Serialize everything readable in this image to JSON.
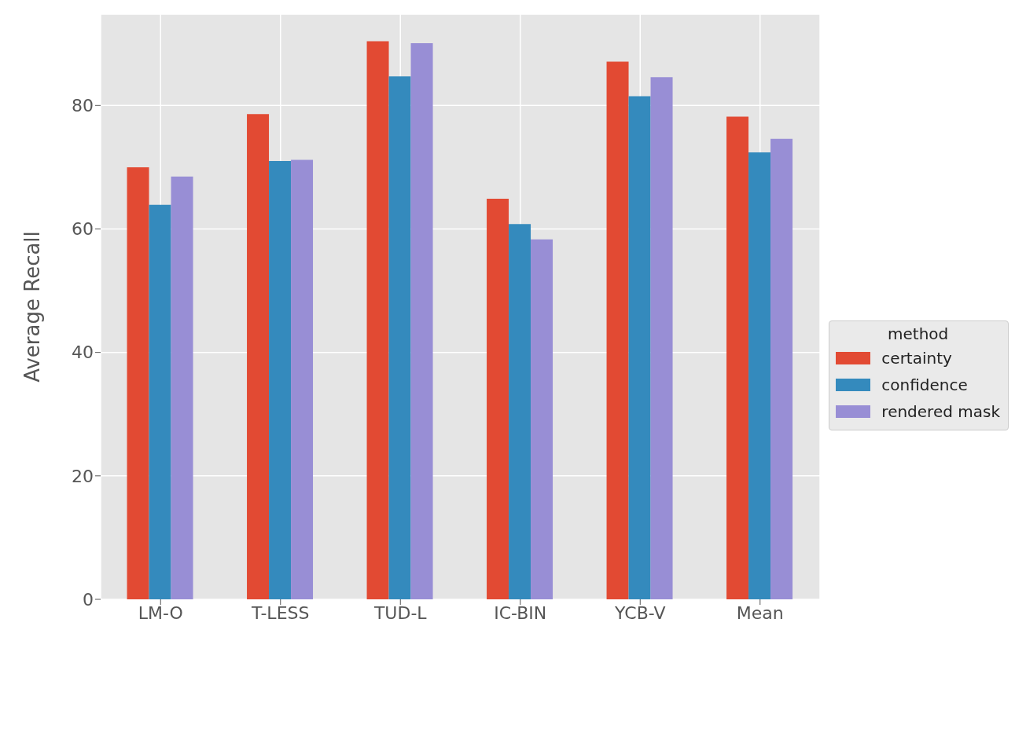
{
  "chart_data": {
    "type": "bar",
    "ylabel": "Average Recall",
    "legend_title": "method",
    "categories": [
      "LM-O",
      "T-LESS",
      "TUD-L",
      "IC-BIN",
      "YCB-V",
      "Mean"
    ],
    "series": [
      {
        "name": "certainty",
        "color": "#e24a33",
        "values": [
          70.0,
          78.6,
          90.4,
          64.9,
          87.1,
          78.2
        ]
      },
      {
        "name": "confidence",
        "color": "#348abd",
        "values": [
          63.9,
          71.0,
          84.7,
          60.8,
          81.5,
          72.4
        ]
      },
      {
        "name": "rendered mask",
        "color": "#988ed5",
        "values": [
          68.5,
          71.2,
          90.1,
          58.3,
          84.6,
          74.6
        ]
      }
    ],
    "ylim": [
      0,
      94.8
    ],
    "yticks": [
      0,
      20,
      40,
      60,
      80
    ],
    "grid": true,
    "legend": "right"
  }
}
